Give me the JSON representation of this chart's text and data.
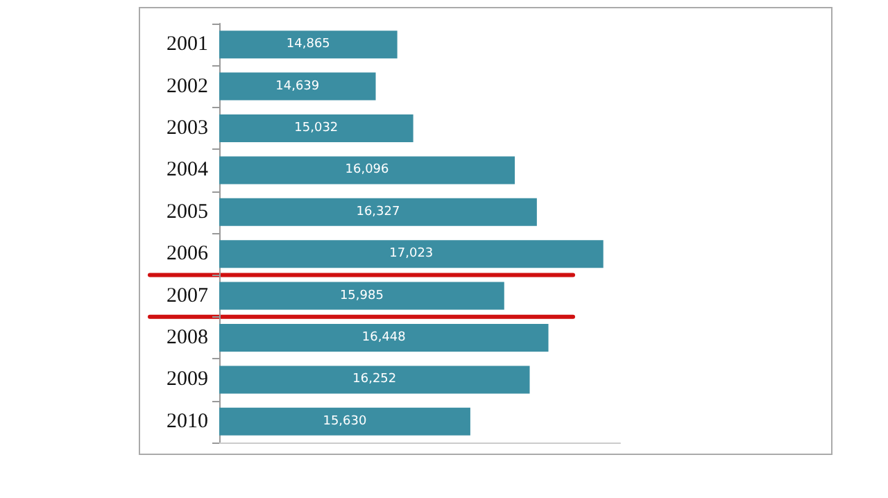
{
  "chart_data": {
    "type": "bar",
    "orientation": "horizontal",
    "categories": [
      "2001",
      "2002",
      "2003",
      "2004",
      "2005",
      "2006",
      "2007",
      "2008",
      "2009",
      "2010"
    ],
    "values": [
      14865,
      14639,
      15032,
      16096,
      16327,
      17023,
      15985,
      16448,
      16252,
      15630
    ],
    "color": "#3b8ea2",
    "value_labels": [
      "14,865",
      "14,639",
      "15,032",
      "16,096",
      "16,327",
      "17,023",
      "15,985",
      "16,448",
      "16,252",
      "15,630"
    ],
    "xlim": [
      13000,
      17200
    ],
    "tick_labels": "y"
  }
}
